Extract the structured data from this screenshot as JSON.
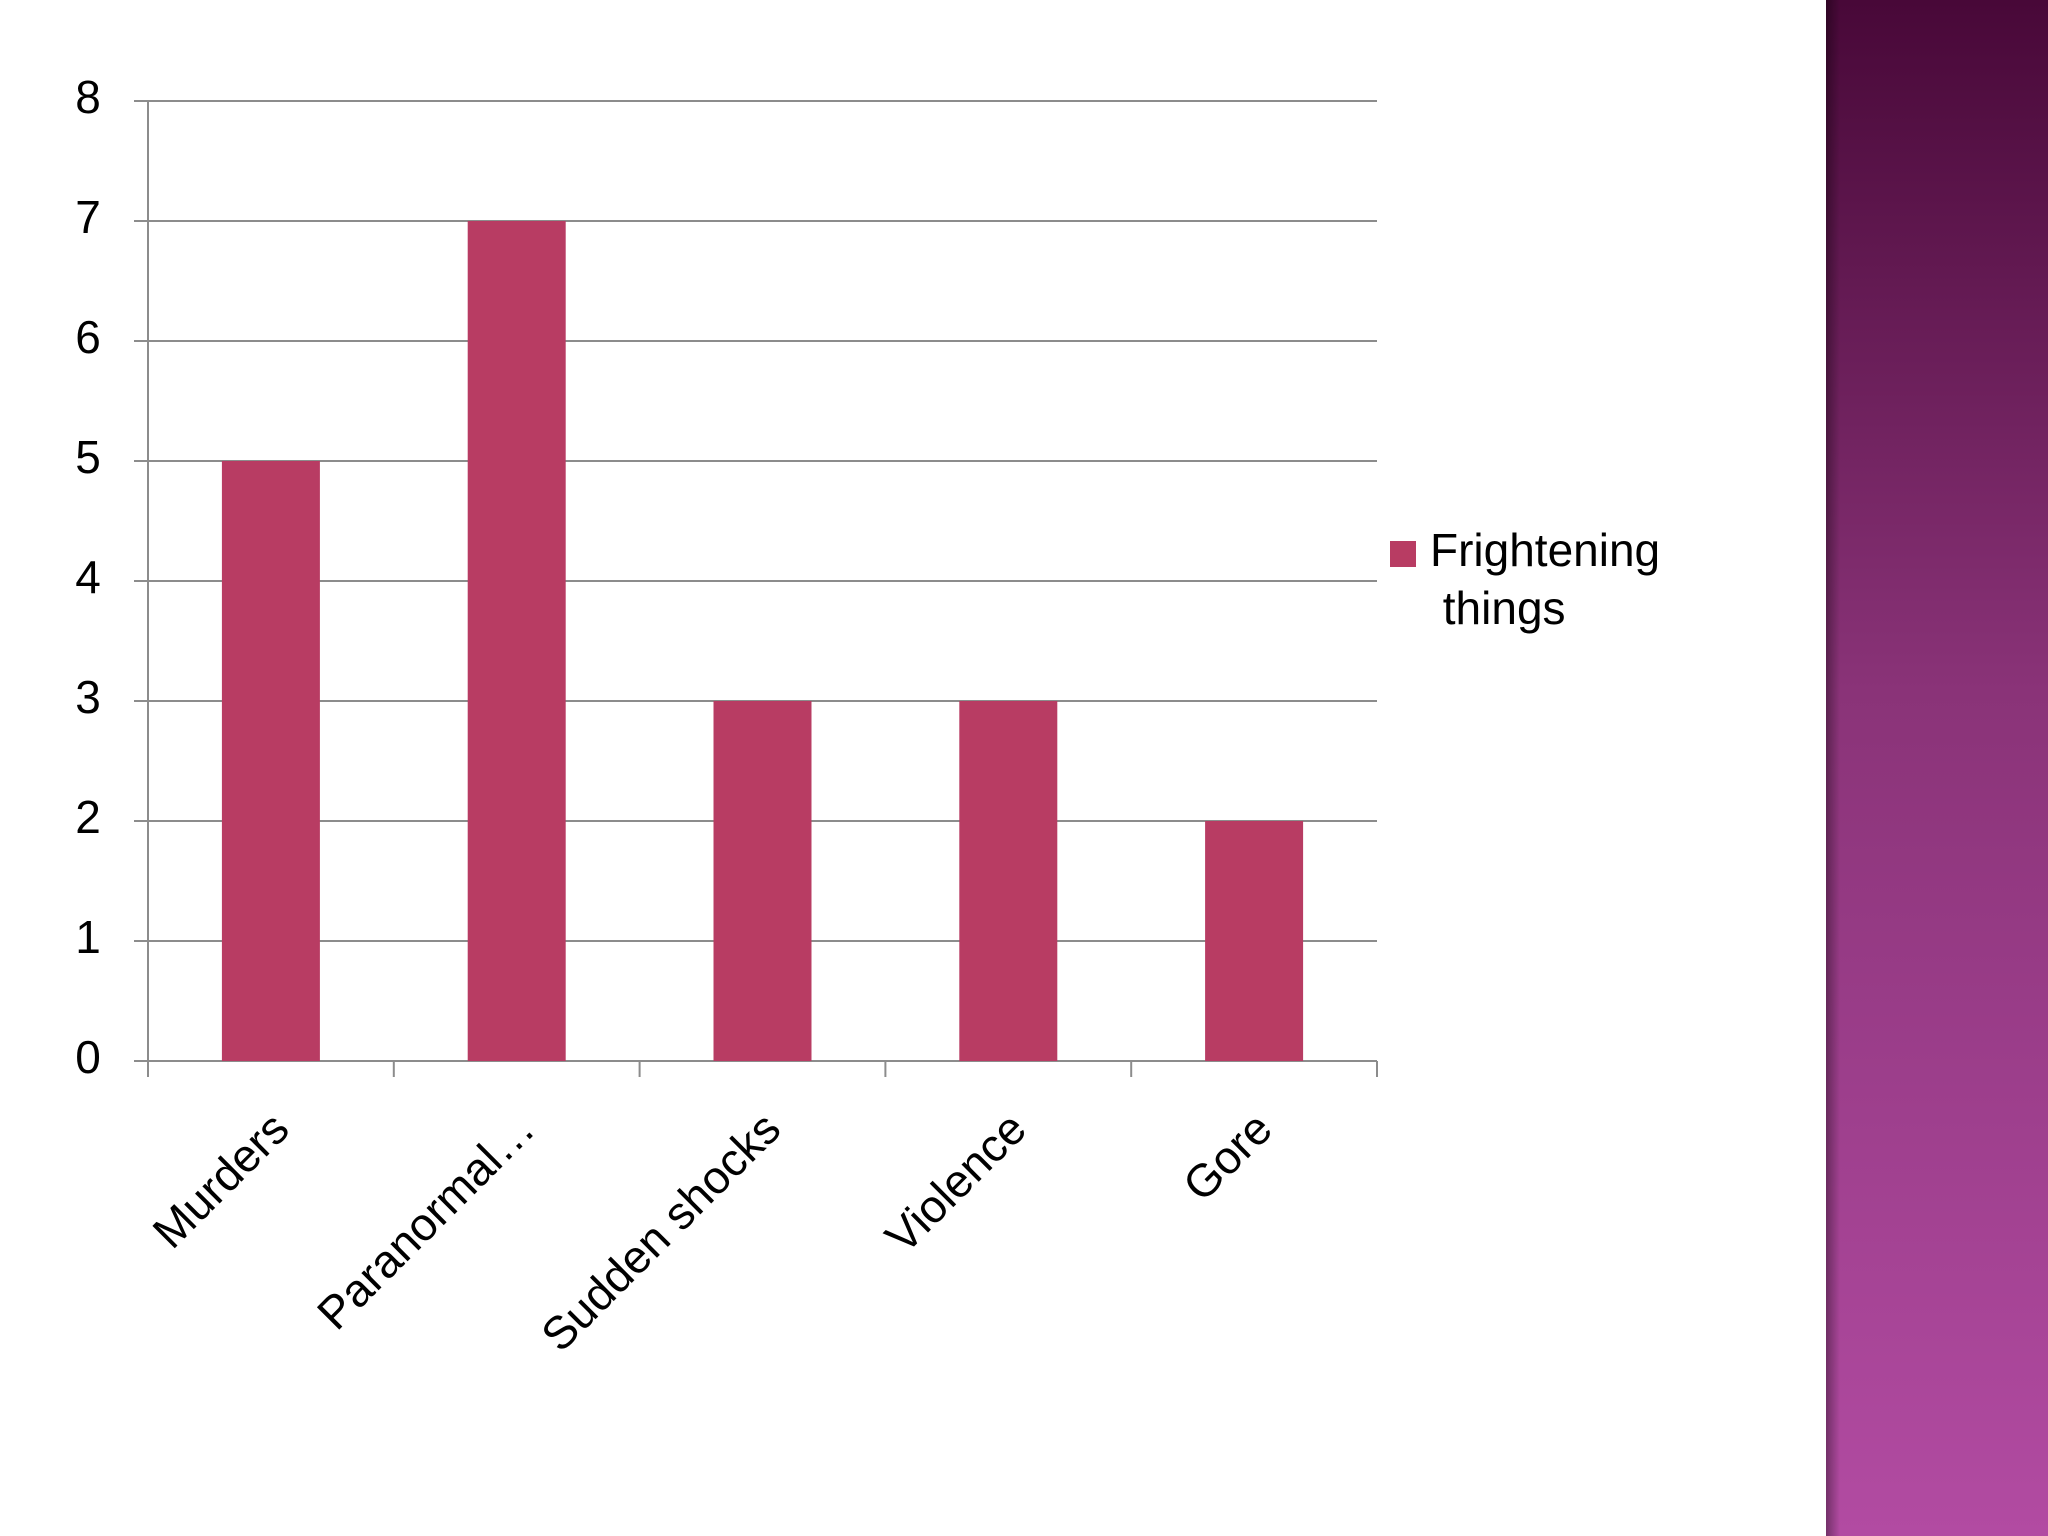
{
  "chart_data": {
    "type": "bar",
    "categories": [
      "Murders",
      "Paranormal…",
      "Sudden shocks",
      "Violence",
      "Gore"
    ],
    "series": [
      {
        "name": "Frightening things",
        "color": "#b83c63",
        "values": [
          5,
          7,
          3,
          3,
          2
        ]
      }
    ],
    "ylim": [
      0,
      8
    ],
    "yticks": [
      0,
      1,
      2,
      3,
      4,
      5,
      6,
      7,
      8
    ],
    "grid": true,
    "legend": "right"
  }
}
